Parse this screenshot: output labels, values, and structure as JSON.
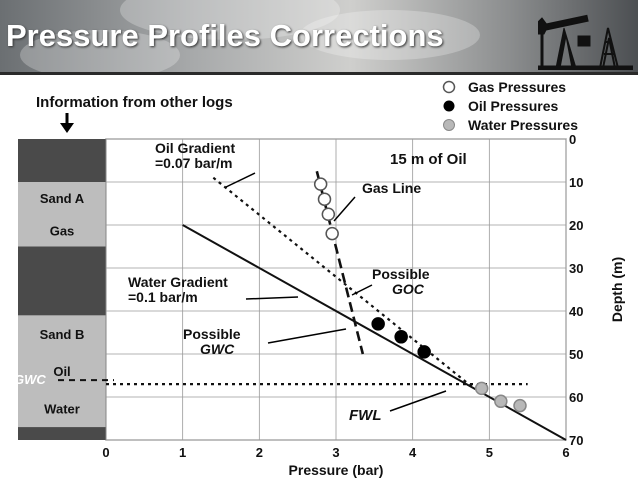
{
  "slide": {
    "title": "Pressure Profiles Corrections"
  },
  "header_note": "Information from other logs",
  "chart_data": {
    "type": "scatter",
    "xlabel": "Pressure (bar)",
    "ylabel": "Depth (m)",
    "xlim": [
      0,
      6
    ],
    "ylim": [
      70,
      0
    ],
    "x_ticks": [
      "0",
      "1",
      "2",
      "3",
      "4",
      "5",
      "6"
    ],
    "y_ticks": [
      "0",
      "10",
      "20",
      "30",
      "40",
      "50",
      "60",
      "70"
    ],
    "grid": true,
    "legend_position": "top-right",
    "legend": [
      "Gas Pressures",
      "Oil Pressures",
      "Water Pressures"
    ],
    "series": [
      {
        "name": "Gas Pressures",
        "color": "#ffffff",
        "points": [
          [
            2.8,
            10.5
          ],
          [
            2.85,
            14
          ],
          [
            2.9,
            17.5
          ],
          [
            2.95,
            22
          ]
        ]
      },
      {
        "name": "Oil Pressures",
        "color": "#000000",
        "points": [
          [
            3.55,
            43
          ],
          [
            3.85,
            46
          ],
          [
            4.15,
            49.5
          ]
        ]
      },
      {
        "name": "Water Pressures",
        "color": "#b8b8b8",
        "points": [
          [
            4.9,
            58
          ],
          [
            5.15,
            61
          ],
          [
            5.4,
            62
          ]
        ]
      }
    ],
    "lines": [
      {
        "style": "solid",
        "from": [
          1.0,
          20
        ],
        "to": [
          6.0,
          70
        ]
      },
      {
        "style": "dotted",
        "from": [
          1.4,
          9
        ],
        "to": [
          4.8,
          58
        ]
      },
      {
        "style": "dashed",
        "from": [
          2.75,
          7.5
        ],
        "to": [
          3.35,
          50
        ]
      },
      {
        "style": "dotted",
        "from": [
          0,
          57
        ],
        "to": [
          5.5,
          57
        ]
      }
    ],
    "log_track": [
      {
        "label": "Sand A",
        "color": "#bdbdbd",
        "from": 10,
        "to": 25
      },
      {
        "label": "Gas",
        "color": "#bdbdbd",
        "from": 10,
        "to": 25
      },
      {
        "label": "Sand B",
        "color": "#bdbdbd",
        "from": 41,
        "to": 67
      },
      {
        "label": "Oil",
        "color": "#bdbdbd",
        "from": 41,
        "to": 67
      },
      {
        "label": "Water",
        "color": "#bdbdbd",
        "from": 41,
        "to": 67
      }
    ],
    "log_track_dark_color": "#4a4a4a",
    "annotations": [
      "Oil Gradient",
      "=0.07 bar/m",
      "15 m of Oil",
      "Gas Line",
      "Water Gradient",
      "=0.1 bar/m",
      "Possible",
      "GOC",
      "Possible",
      "GWC",
      "FWL",
      "GWC"
    ]
  }
}
